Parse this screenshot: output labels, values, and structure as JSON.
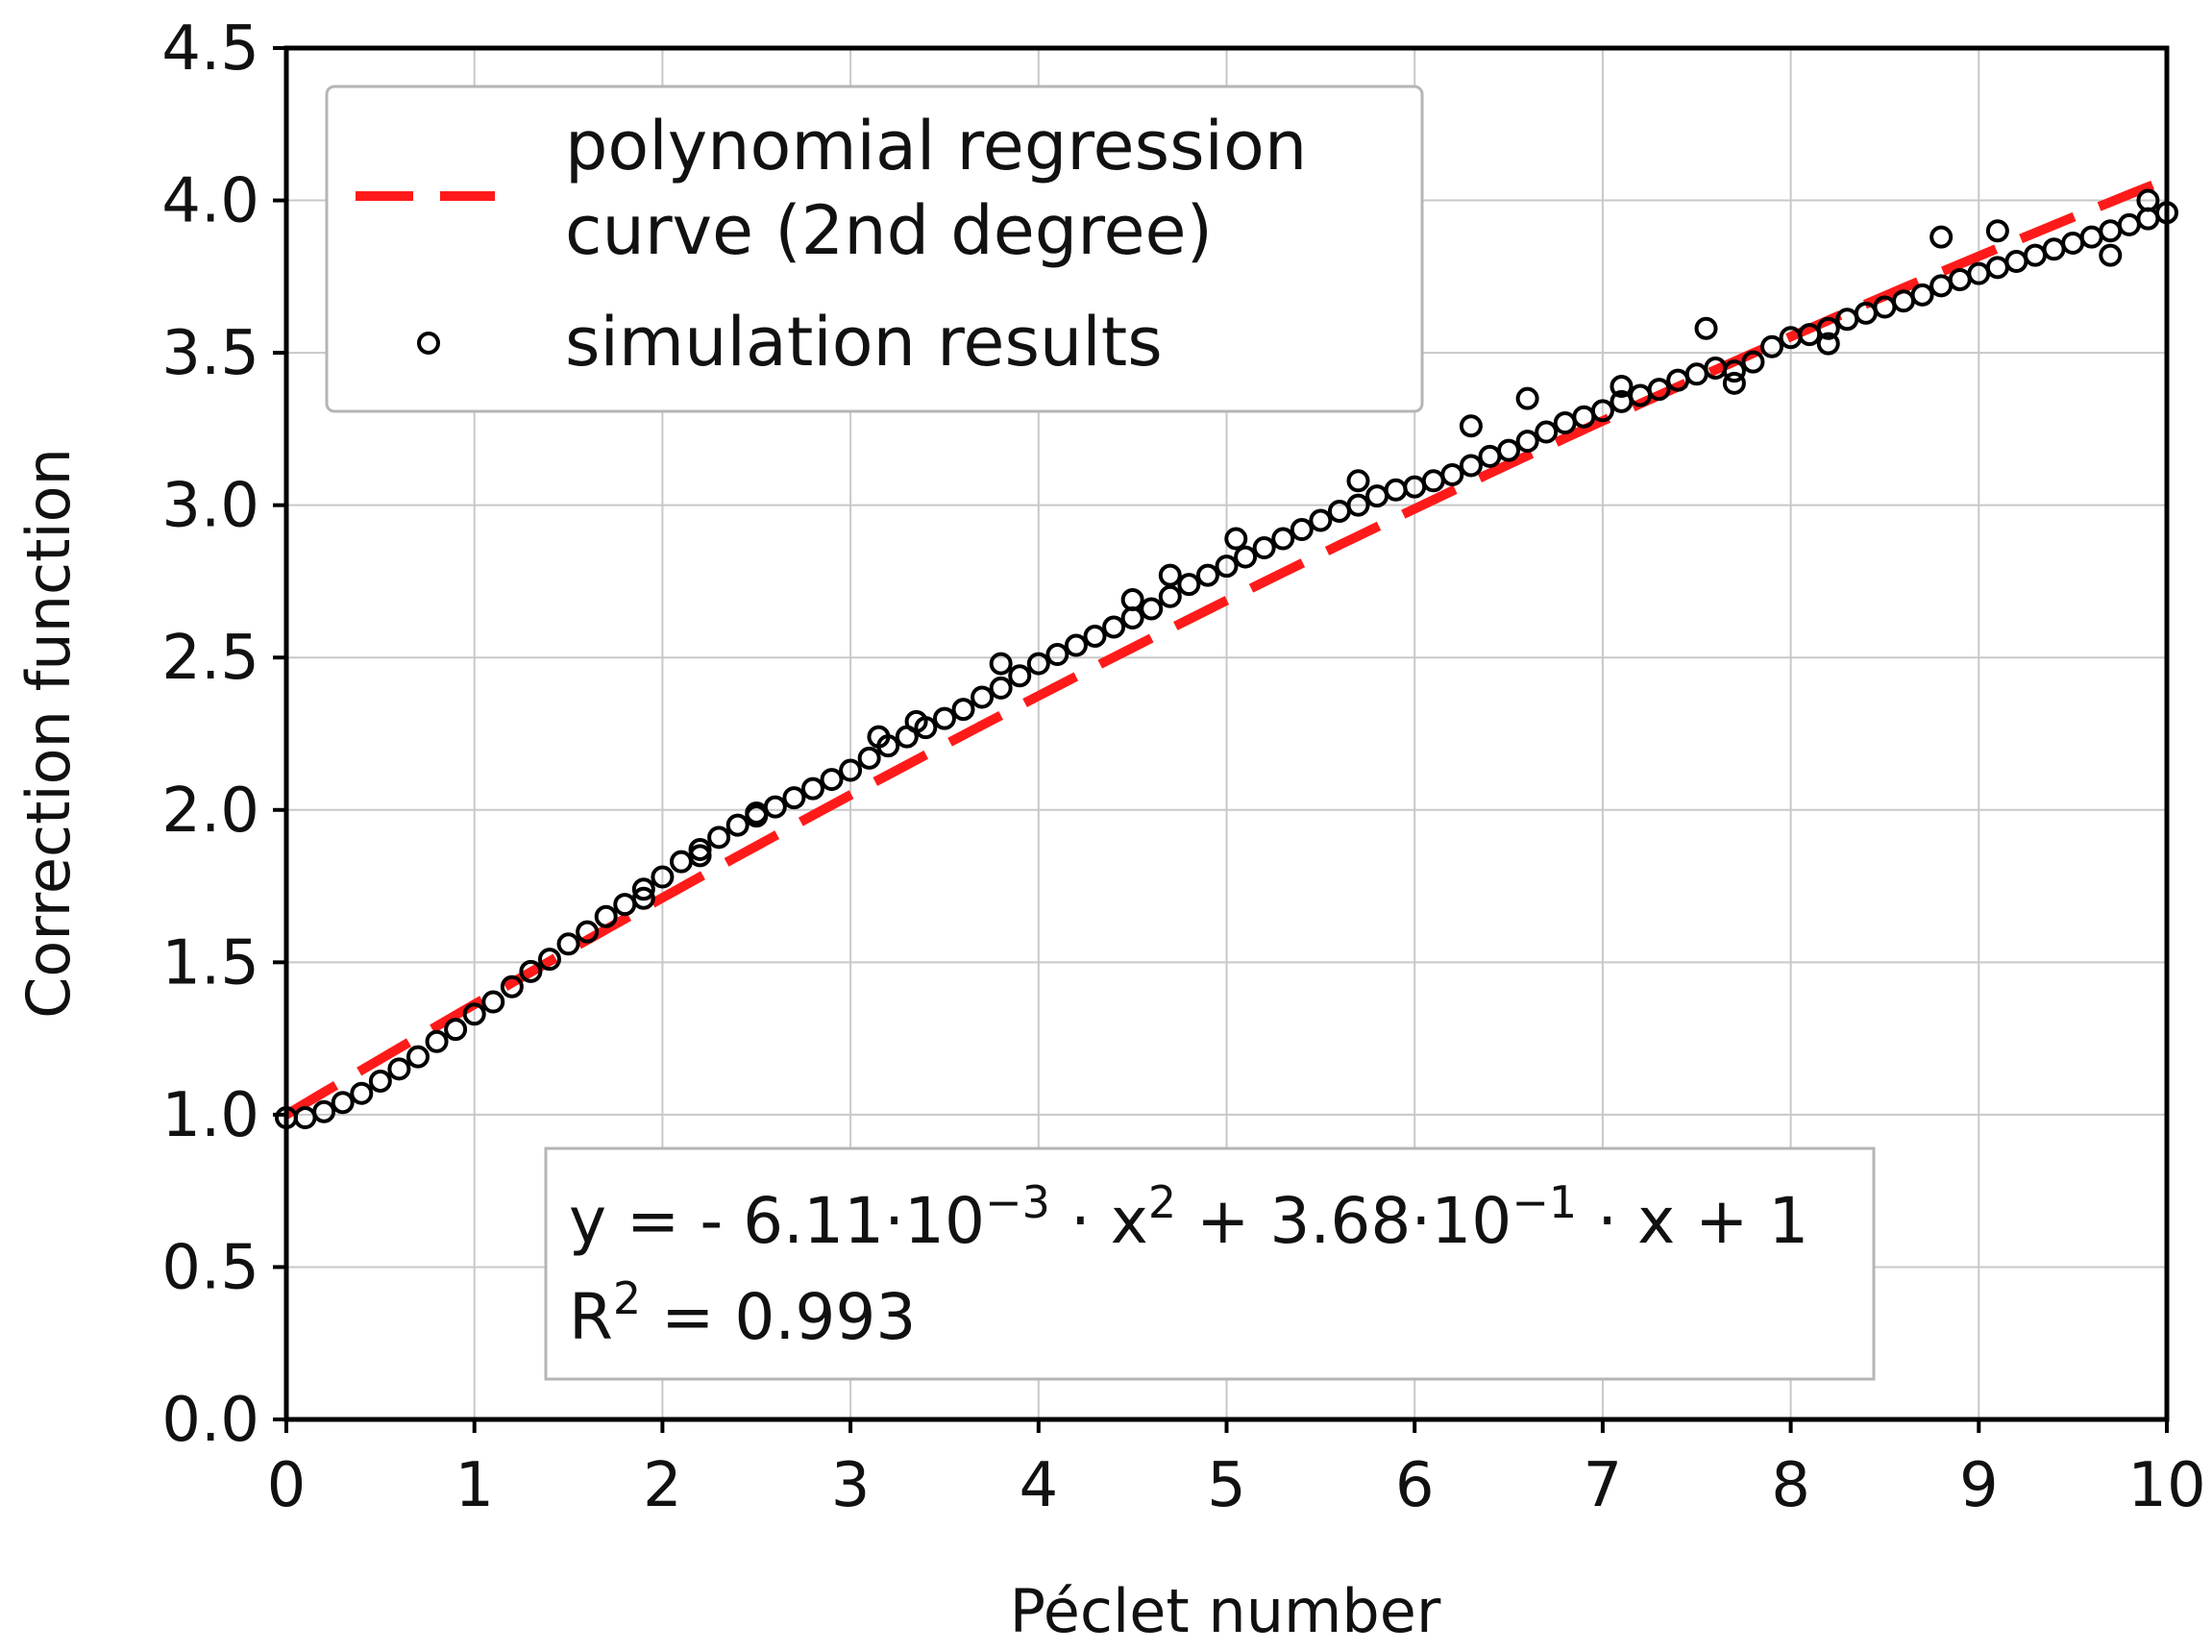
{
  "chart_data": {
    "type": "scatter",
    "title": "",
    "xlabel": "Péclet number",
    "ylabel": "Correction function",
    "xlim": [
      0,
      10
    ],
    "ylim": [
      0,
      4.5
    ],
    "grid": true,
    "x_ticks": [
      "0",
      "1",
      "2",
      "3",
      "4",
      "5",
      "6",
      "7",
      "8",
      "9",
      "10"
    ],
    "y_ticks": [
      "0.0",
      "0.5",
      "1.0",
      "1.5",
      "2.0",
      "2.5",
      "3.0",
      "3.5",
      "4.0",
      "4.5"
    ],
    "legend": {
      "placement": "top-left",
      "entries": [
        {
          "label_line1": "polynomial regression",
          "label_line2": "curve (2nd degree)",
          "style": "dashed-line",
          "color": "#ff1a1a"
        },
        {
          "label": "simulation results",
          "style": "open-circle-marker",
          "color": "#000000"
        }
      ]
    },
    "fit": {
      "name": "polynomial regression curve (2nd degree)",
      "a": -0.00611,
      "b": 0.368,
      "c": 1,
      "color": "#ff1a1a"
    },
    "annotation": {
      "placement": "bottom-center",
      "equation": {
        "lhs": "y = - 6.11·10",
        "exp1": "−3",
        "mid1": " · x",
        "exp2": "2",
        "mid2": " + 3.68·10",
        "exp3": "−1",
        "rhs": " · x + 1"
      },
      "r2": {
        "base": "R",
        "exp": "2",
        "rest": " = 0.993"
      }
    },
    "series": [
      {
        "name": "simulation results",
        "marker": "open-circle",
        "color": "#000000",
        "points": [
          [
            0.0,
            0.99
          ],
          [
            0.1,
            0.99
          ],
          [
            0.2,
            1.01
          ],
          [
            0.3,
            1.04
          ],
          [
            0.4,
            1.07
          ],
          [
            0.5,
            1.11
          ],
          [
            0.6,
            1.15
          ],
          [
            0.7,
            1.19
          ],
          [
            0.8,
            1.24
          ],
          [
            0.9,
            1.28
          ],
          [
            1.0,
            1.33
          ],
          [
            1.1,
            1.37
          ],
          [
            1.2,
            1.42
          ],
          [
            1.3,
            1.47
          ],
          [
            1.4,
            1.51
          ],
          [
            1.5,
            1.56
          ],
          [
            1.6,
            1.6
          ],
          [
            1.7,
            1.65
          ],
          [
            1.8,
            1.69
          ],
          [
            1.9,
            1.74
          ],
          [
            2.0,
            1.78
          ],
          [
            2.1,
            1.83
          ],
          [
            2.2,
            1.87
          ],
          [
            2.3,
            1.91
          ],
          [
            2.4,
            1.95
          ],
          [
            2.5,
            1.98
          ],
          [
            2.6,
            2.01
          ],
          [
            2.7,
            2.04
          ],
          [
            2.8,
            2.07
          ],
          [
            2.9,
            2.1
          ],
          [
            3.0,
            2.13
          ],
          [
            3.1,
            2.17
          ],
          [
            3.2,
            2.21
          ],
          [
            3.3,
            2.24
          ],
          [
            3.4,
            2.27
          ],
          [
            3.5,
            2.3
          ],
          [
            3.6,
            2.33
          ],
          [
            3.7,
            2.37
          ],
          [
            3.8,
            2.4
          ],
          [
            3.9,
            2.44
          ],
          [
            4.0,
            2.48
          ],
          [
            4.1,
            2.51
          ],
          [
            4.2,
            2.54
          ],
          [
            4.3,
            2.57
          ],
          [
            4.4,
            2.6
          ],
          [
            4.5,
            2.63
          ],
          [
            4.6,
            2.66
          ],
          [
            4.7,
            2.7
          ],
          [
            4.8,
            2.74
          ],
          [
            4.9,
            2.77
          ],
          [
            5.0,
            2.8
          ],
          [
            5.1,
            2.83
          ],
          [
            5.2,
            2.86
          ],
          [
            5.3,
            2.89
          ],
          [
            5.4,
            2.92
          ],
          [
            5.5,
            2.95
          ],
          [
            5.6,
            2.98
          ],
          [
            5.7,
            3.0
          ],
          [
            5.8,
            3.03
          ],
          [
            5.9,
            3.05
          ],
          [
            6.0,
            3.06
          ],
          [
            6.1,
            3.08
          ],
          [
            6.2,
            3.1
          ],
          [
            6.3,
            3.13
          ],
          [
            6.4,
            3.16
          ],
          [
            6.5,
            3.18
          ],
          [
            6.6,
            3.21
          ],
          [
            6.7,
            3.24
          ],
          [
            6.8,
            3.27
          ],
          [
            6.9,
            3.29
          ],
          [
            7.0,
            3.31
          ],
          [
            7.1,
            3.34
          ],
          [
            7.2,
            3.36
          ],
          [
            7.3,
            3.38
          ],
          [
            7.4,
            3.41
          ],
          [
            7.5,
            3.43
          ],
          [
            7.6,
            3.45
          ],
          [
            7.7,
            3.44
          ],
          [
            7.8,
            3.47
          ],
          [
            7.9,
            3.52
          ],
          [
            8.0,
            3.55
          ],
          [
            8.1,
            3.56
          ],
          [
            8.2,
            3.58
          ],
          [
            8.3,
            3.61
          ],
          [
            8.4,
            3.63
          ],
          [
            8.5,
            3.65
          ],
          [
            8.6,
            3.67
          ],
          [
            8.7,
            3.69
          ],
          [
            8.8,
            3.72
          ],
          [
            8.9,
            3.74
          ],
          [
            9.0,
            3.76
          ],
          [
            9.1,
            3.78
          ],
          [
            9.2,
            3.8
          ],
          [
            9.3,
            3.82
          ],
          [
            9.4,
            3.84
          ],
          [
            9.5,
            3.86
          ],
          [
            9.6,
            3.88
          ],
          [
            9.7,
            3.9
          ],
          [
            9.8,
            3.92
          ],
          [
            9.9,
            3.94
          ],
          [
            10.0,
            3.96
          ],
          [
            2.2,
            1.85
          ],
          [
            2.5,
            1.99
          ],
          [
            3.15,
            2.24
          ],
          [
            3.35,
            2.29
          ],
          [
            3.8,
            2.48
          ],
          [
            4.5,
            2.69
          ],
          [
            4.7,
            2.77
          ],
          [
            5.05,
            2.89
          ],
          [
            5.7,
            3.08
          ],
          [
            6.3,
            3.26
          ],
          [
            6.6,
            3.35
          ],
          [
            7.1,
            3.39
          ],
          [
            7.55,
            3.58
          ],
          [
            7.7,
            3.4
          ],
          [
            8.2,
            3.53
          ],
          [
            8.8,
            3.88
          ],
          [
            9.1,
            3.9
          ],
          [
            9.7,
            3.82
          ],
          [
            9.9,
            4.0
          ],
          [
            1.9,
            1.71
          ]
        ]
      }
    ]
  }
}
